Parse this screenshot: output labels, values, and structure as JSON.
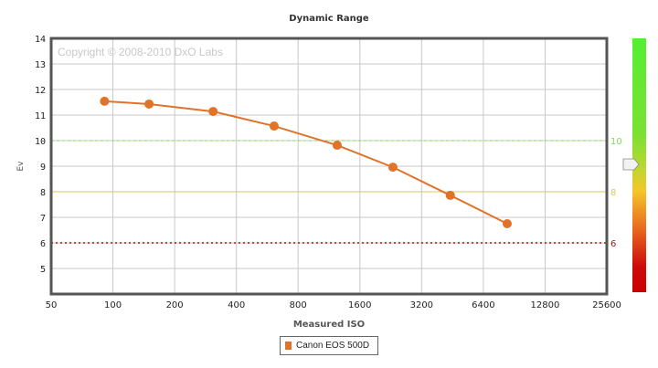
{
  "chart_data": {
    "type": "line",
    "title": "Dynamic Range",
    "xlabel": "Measured ISO",
    "ylabel": "Ev",
    "x_scale": "log2",
    "x_ticks": [
      50,
      100,
      200,
      400,
      800,
      1600,
      3200,
      6400,
      12800,
      25600
    ],
    "y_ticks": [
      5,
      6,
      7,
      8,
      9,
      10,
      11,
      12,
      13,
      14
    ],
    "ylim": [
      4,
      14
    ],
    "xlim": [
      50,
      25600
    ],
    "grid": true,
    "watermark": "Copyright © 2008-2010 DxO Labs",
    "series": [
      {
        "name": "Canon EOS 500D",
        "color": "#e07329",
        "x": [
          91,
          150,
          308,
          611,
          1240,
          2318,
          4417,
          8364
        ],
        "y": [
          11.54,
          11.43,
          11.14,
          10.57,
          9.82,
          8.96,
          7.86,
          6.75
        ]
      }
    ],
    "reference_lines": [
      {
        "value": 10,
        "label": "10",
        "color": "#7ed957",
        "style": "dashed"
      },
      {
        "value": 8,
        "label": "8",
        "color": "#d9c95a",
        "style": "solid"
      },
      {
        "value": 6,
        "label": "6",
        "color": "#a01818",
        "style": "dotted"
      }
    ],
    "color_scale": {
      "top": "#55ee33",
      "middle": "#f5c62a",
      "bottom": "#cc0000",
      "marker_value": 9
    },
    "legend_position": "bottom-center"
  },
  "labels": {
    "title": "Dynamic Range",
    "xlabel": "Measured ISO",
    "ylabel": "Ev",
    "legend_item": "Canon EOS 500D",
    "watermark": "Copyright © 2008-2010 DxO Labs"
  }
}
